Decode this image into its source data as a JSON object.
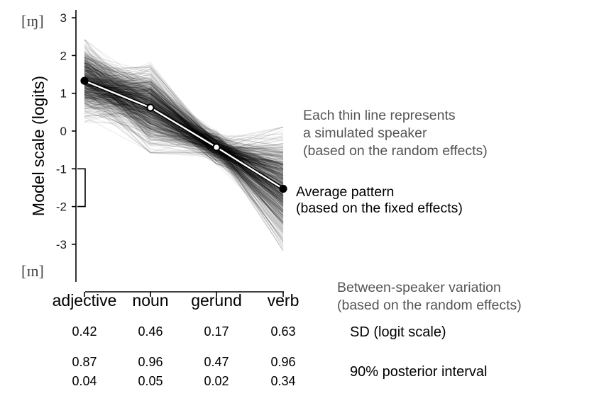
{
  "chart_data": {
    "type": "line",
    "categories": [
      "adjective",
      "noun",
      "gerund",
      "verb"
    ],
    "ylabel": "Model scale (logits)",
    "ylim": [
      -3.9,
      3.2
    ],
    "yticks": [
      3,
      2,
      1,
      0,
      -1,
      -2,
      -3
    ],
    "ytick_labels": [
      "3",
      "2",
      "1",
      "0",
      "-1",
      "-2",
      "-3"
    ],
    "y_end_labels": {
      "top": "[ɪŋ]",
      "bottom": "[ɪn]"
    },
    "average": {
      "name": "Average pattern",
      "values": [
        1.33,
        0.62,
        -0.43,
        -1.53
      ]
    },
    "speaker_sd": [
      0.42,
      0.46,
      0.17,
      0.63
    ],
    "sd_bracket": [
      -2.0,
      -1.0
    ],
    "annotations": {
      "random_effects_note": [
        "Each thin line represents",
        "a simulated speaker",
        "(based on the random effects)"
      ],
      "fixed_effects_note": [
        "Average pattern",
        "(based on the fixed effects)"
      ],
      "variation_note": [
        "Between-speaker variation",
        "(based on the random effects)"
      ]
    },
    "stats": {
      "sd_label": "SD (logit scale)",
      "sd_values": [
        "0.42",
        "0.46",
        "0.17",
        "0.63"
      ],
      "interval_label": "90% posterior interval",
      "interval_upper": [
        "0.87",
        "0.96",
        "0.47",
        "0.96"
      ],
      "interval_lower": [
        "0.04",
        "0.05",
        "0.02",
        "0.34"
      ]
    },
    "grid": false,
    "legend": "none"
  }
}
